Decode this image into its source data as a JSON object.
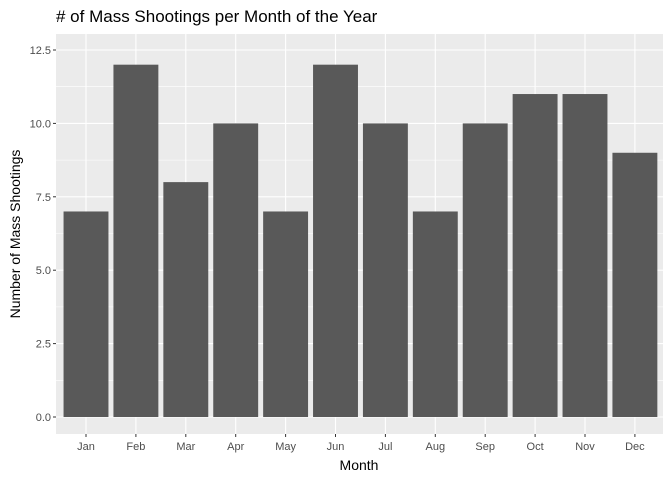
{
  "chart_data": {
    "type": "bar",
    "title": "# of Mass Shootings per Month of the Year",
    "xlabel": "Month",
    "ylabel": "Number of Mass Shootings",
    "categories": [
      "Jan",
      "Feb",
      "Mar",
      "Apr",
      "May",
      "Jun",
      "Jul",
      "Aug",
      "Sep",
      "Oct",
      "Nov",
      "Dec"
    ],
    "values": [
      7,
      12,
      8,
      10,
      7,
      12,
      10,
      7,
      10,
      11,
      11,
      9
    ],
    "ylim": [
      0,
      12.5
    ],
    "yticks": [
      0.0,
      2.5,
      5.0,
      7.5,
      10.0,
      12.5
    ],
    "ytick_labels": [
      "0.0",
      "2.5",
      "5.0",
      "7.5",
      "10.0",
      "12.5"
    ],
    "grid": true,
    "colors": {
      "bar": "#595959",
      "panel": "#ebebeb",
      "grid": "#ffffff"
    }
  }
}
